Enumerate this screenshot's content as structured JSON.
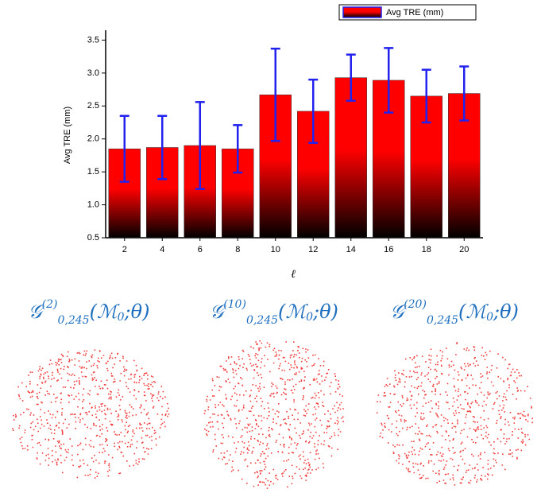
{
  "chart_data": {
    "type": "bar",
    "y_label": "Avg TRE (mm)",
    "x_label": "ℓ",
    "categories": [
      "2",
      "4",
      "6",
      "8",
      "10",
      "12",
      "14",
      "16",
      "18",
      "20"
    ],
    "series": [
      {
        "name": "Avg TRE (mm)",
        "color": "#ff0000",
        "error_color": "#2222ee",
        "values": [
          1.85,
          1.87,
          1.9,
          1.85,
          2.67,
          2.42,
          2.93,
          2.89,
          2.65,
          2.69
        ],
        "errors": [
          0.5,
          0.48,
          0.66,
          0.36,
          0.7,
          0.48,
          0.35,
          0.49,
          0.4,
          0.41
        ]
      }
    ],
    "ylim": [
      0.5,
      3.65
    ],
    "yticks": [
      {
        "value": 0.5,
        "label": "0.5"
      },
      {
        "value": 1,
        "label": "1.0"
      },
      {
        "value": 1.5,
        "label": "1.5"
      },
      {
        "value": 2,
        "label": "2.0"
      },
      {
        "value": 2.5,
        "label": "2.5"
      },
      {
        "value": 3,
        "label": "3.0"
      },
      {
        "value": 3.5,
        "label": "3.5"
      }
    ],
    "legend": "top-right",
    "grid": false
  },
  "panels": [
    {
      "base": "𝒢",
      "superscript": "(2)",
      "subscript": "0,245",
      "arg_open": "(ℳ",
      "arg_subscript": "0",
      "arg_tail": ";θ)"
    },
    {
      "base": "𝒢",
      "superscript": "(10)",
      "subscript": "0,245",
      "arg_open": "(ℳ",
      "arg_subscript": "0",
      "arg_tail": ";θ)"
    },
    {
      "base": "𝒢",
      "superscript": "(20)",
      "subscript": "0,245",
      "arg_open": "(ℳ",
      "arg_subscript": "0",
      "arg_tail": ";θ)"
    }
  ]
}
